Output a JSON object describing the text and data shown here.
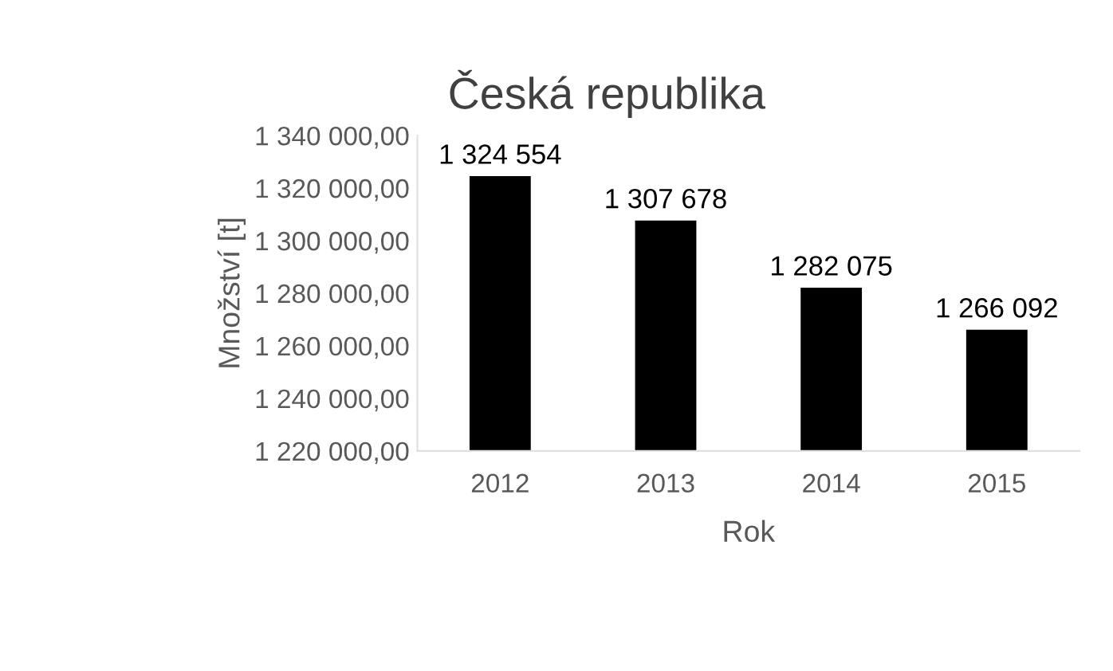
{
  "chart_data": {
    "type": "bar",
    "title": "Česká republika",
    "xlabel": "Rok",
    "ylabel": "Množství [t]",
    "categories": [
      "2012",
      "2013",
      "2014",
      "2015"
    ],
    "values": [
      1324554,
      1307678,
      1282075,
      1266092
    ],
    "value_labels": [
      "1 324 554",
      "1 307 678",
      "1 282 075",
      "1 266 092"
    ],
    "color": "#000000",
    "ylim": [
      1220000,
      1340000
    ],
    "yticks": [
      {
        "value": 1220000,
        "label": "1 220 000,00"
      },
      {
        "value": 1240000,
        "label": "1 240 000,00"
      },
      {
        "value": 1260000,
        "label": "1 260 000,00"
      },
      {
        "value": 1280000,
        "label": "1 280 000,00"
      },
      {
        "value": 1300000,
        "label": "1 300 000,00"
      },
      {
        "value": 1320000,
        "label": "1 320 000,00"
      },
      {
        "value": 1340000,
        "label": "1 340 000,00"
      }
    ],
    "grid": false,
    "legend": false
  }
}
